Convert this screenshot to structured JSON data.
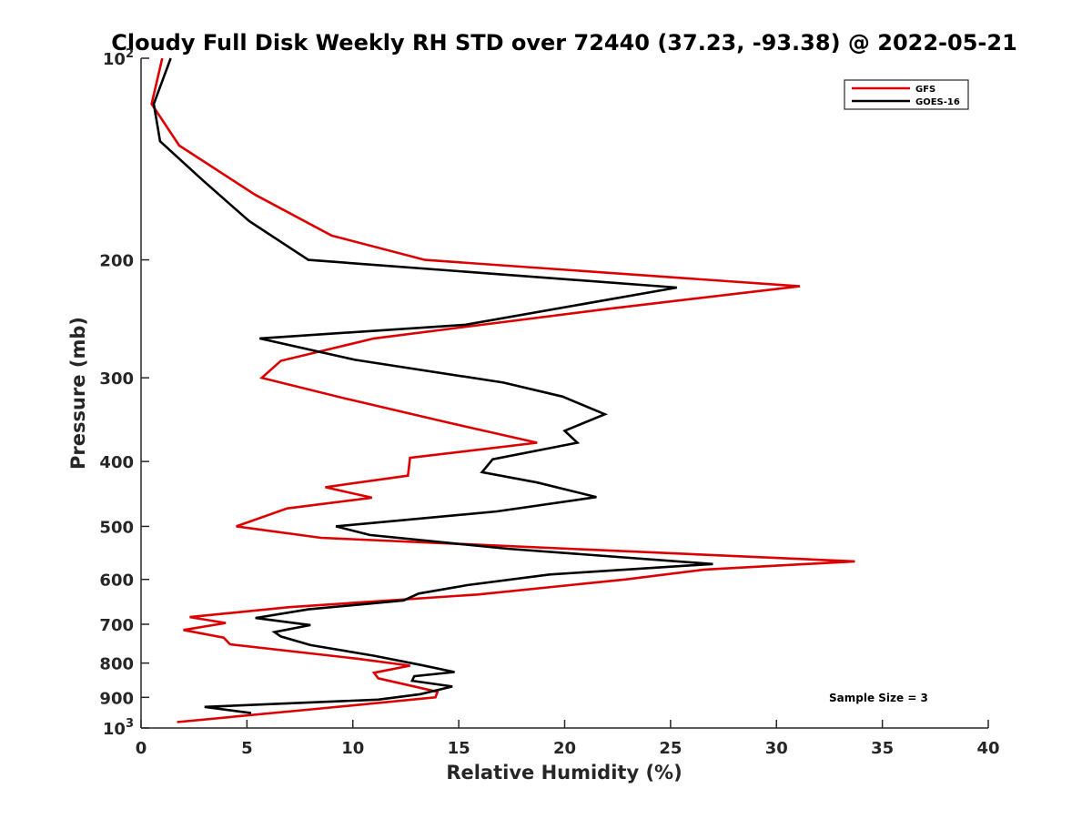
{
  "chart_data": {
    "type": "line",
    "title": "Cloudy Full Disk Weekly RH STD over 72440 (37.23, -93.38) @ 2022-05-21",
    "xlabel": "Relative Humidity (%)",
    "ylabel": "Pressure (mb)",
    "xlim": [
      0,
      40
    ],
    "ylim": [
      100,
      1000
    ],
    "y_scale": "log",
    "y_reversed": true,
    "grid": false,
    "legend_position": "top-right",
    "x_ticks": [
      {
        "value": 0,
        "label": "0"
      },
      {
        "value": 5,
        "label": "5"
      },
      {
        "value": 10,
        "label": "10"
      },
      {
        "value": 15,
        "label": "15"
      },
      {
        "value": 20,
        "label": "20"
      },
      {
        "value": 25,
        "label": "25"
      },
      {
        "value": 30,
        "label": "30"
      },
      {
        "value": 35,
        "label": "35"
      },
      {
        "value": 40,
        "label": "40"
      }
    ],
    "y_ticks": [
      {
        "value": 100,
        "base": "10",
        "exp": "2"
      },
      {
        "value": 200,
        "base": "200",
        "exp": ""
      },
      {
        "value": 300,
        "base": "300",
        "exp": ""
      },
      {
        "value": 400,
        "base": "400",
        "exp": ""
      },
      {
        "value": 500,
        "base": "500",
        "exp": ""
      },
      {
        "value": 600,
        "base": "600",
        "exp": ""
      },
      {
        "value": 700,
        "base": "700",
        "exp": ""
      },
      {
        "value": 800,
        "base": "800",
        "exp": ""
      },
      {
        "value": 900,
        "base": "900",
        "exp": ""
      },
      {
        "value": 1000,
        "base": "10",
        "exp": "3"
      }
    ],
    "series": [
      {
        "name": "GFS",
        "color": "#dd0000",
        "points": [
          [
            1.0,
            100
          ],
          [
            0.5,
            117
          ],
          [
            1.8,
            135
          ],
          [
            5.4,
            160
          ],
          [
            9.0,
            184
          ],
          [
            13.4,
            200
          ],
          [
            31.1,
            219
          ],
          [
            21.9,
            237
          ],
          [
            11.0,
            262
          ],
          [
            6.6,
            283
          ],
          [
            5.7,
            300
          ],
          [
            9.8,
            323
          ],
          [
            14.5,
            350
          ],
          [
            18.7,
            375
          ],
          [
            12.7,
            395
          ],
          [
            12.6,
            420
          ],
          [
            8.7,
            437
          ],
          [
            10.9,
            453
          ],
          [
            6.9,
            470
          ],
          [
            4.5,
            500
          ],
          [
            8.5,
            520
          ],
          [
            33.7,
            564
          ],
          [
            26.6,
            580
          ],
          [
            22.9,
            600
          ],
          [
            15.9,
            632
          ],
          [
            7.0,
            660
          ],
          [
            2.3,
            683
          ],
          [
            4.0,
            697
          ],
          [
            2.0,
            714
          ],
          [
            3.9,
            733
          ],
          [
            4.2,
            750
          ],
          [
            10.2,
            788
          ],
          [
            12.7,
            807
          ],
          [
            11.0,
            827
          ],
          [
            11.2,
            843
          ],
          [
            14.0,
            883
          ],
          [
            13.9,
            900
          ],
          [
            8.5,
            935
          ],
          [
            1.7,
            980
          ]
        ]
      },
      {
        "name": "GOES-16",
        "color": "#000000",
        "points": [
          [
            1.4,
            100
          ],
          [
            0.6,
            117
          ],
          [
            0.9,
            133
          ],
          [
            2.9,
            152
          ],
          [
            5.1,
            175
          ],
          [
            7.9,
            200
          ],
          [
            25.3,
            220
          ],
          [
            15.3,
            250
          ],
          [
            5.6,
            262
          ],
          [
            10.1,
            282
          ],
          [
            17.1,
            305
          ],
          [
            19.9,
            320
          ],
          [
            21.9,
            340
          ],
          [
            20.0,
            360
          ],
          [
            20.6,
            375
          ],
          [
            16.6,
            397
          ],
          [
            16.1,
            415
          ],
          [
            18.7,
            430
          ],
          [
            21.5,
            452
          ],
          [
            16.8,
            475
          ],
          [
            9.2,
            500
          ],
          [
            10.8,
            515
          ],
          [
            17.3,
            540
          ],
          [
            27.0,
            569
          ],
          [
            19.3,
            590
          ],
          [
            15.4,
            612
          ],
          [
            13.1,
            630
          ],
          [
            12.4,
            645
          ],
          [
            7.9,
            665
          ],
          [
            5.4,
            685
          ],
          [
            8.0,
            702
          ],
          [
            6.3,
            719
          ],
          [
            6.6,
            730
          ],
          [
            8.0,
            752
          ],
          [
            11.0,
            780
          ],
          [
            13.2,
            805
          ],
          [
            14.8,
            825
          ],
          [
            12.9,
            837
          ],
          [
            12.8,
            850
          ],
          [
            14.7,
            867
          ],
          [
            13.2,
            890
          ],
          [
            11.2,
            907
          ],
          [
            3.0,
            930
          ],
          [
            5.2,
            950
          ]
        ]
      }
    ],
    "annotation": "Sample Size = 3"
  }
}
